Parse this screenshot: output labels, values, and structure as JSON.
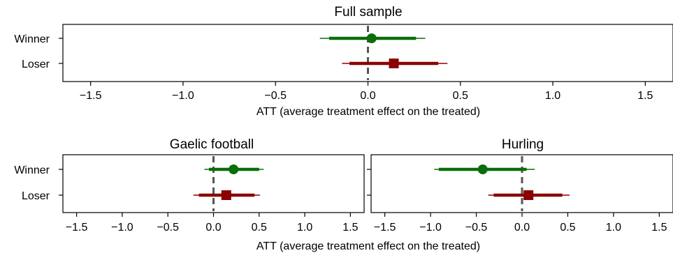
{
  "figure": {
    "shared_xlabel_top": "ATT (average treatment effect on the treated)",
    "shared_xlabel_bottom": "ATT (average treatment effect on the treated)"
  },
  "colors": {
    "winner": "#0a6e0a",
    "loser": "#8b0000",
    "zero_line": "#555555"
  },
  "chart_data": [
    {
      "type": "scatter",
      "subtype": "coefficient-plot",
      "title": "Full sample",
      "xlabel": "ATT (average treatment effect on the treated)",
      "xlim": [
        -1.65,
        1.65
      ],
      "xticks": [
        -1.5,
        -1.0,
        -0.5,
        0.0,
        0.5,
        1.0,
        1.5
      ],
      "xtick_labels": [
        "−1.5",
        "−1.0",
        "−0.5",
        "0.0",
        "0.5",
        "1.0",
        "1.5"
      ],
      "categories": [
        "Winner",
        "Loser"
      ],
      "reference_line": 0,
      "series": [
        {
          "name": "Winner",
          "marker": "circle",
          "estimate": 0.02,
          "ci_inner": [
            -0.21,
            0.26
          ],
          "ci_outer": [
            -0.26,
            0.31
          ]
        },
        {
          "name": "Loser",
          "marker": "square",
          "estimate": 0.14,
          "ci_inner": [
            -0.1,
            0.38
          ],
          "ci_outer": [
            -0.14,
            0.43
          ]
        }
      ]
    },
    {
      "type": "scatter",
      "subtype": "coefficient-plot",
      "title": "Gaelic football",
      "xlabel": "",
      "xlim": [
        -1.65,
        1.65
      ],
      "xticks": [
        -1.5,
        -1.0,
        -0.5,
        0.0,
        0.5,
        1.0,
        1.5
      ],
      "xtick_labels": [
        "−1.5",
        "−1.0",
        "−0.5",
        "0.0",
        "0.5",
        "1.0",
        "1.5"
      ],
      "categories": [
        "Winner",
        "Loser"
      ],
      "reference_line": 0,
      "series": [
        {
          "name": "Winner",
          "marker": "circle",
          "estimate": 0.22,
          "ci_inner": [
            -0.05,
            0.5
          ],
          "ci_outer": [
            -0.1,
            0.55
          ]
        },
        {
          "name": "Loser",
          "marker": "square",
          "estimate": 0.14,
          "ci_inner": [
            -0.16,
            0.45
          ],
          "ci_outer": [
            -0.22,
            0.51
          ]
        }
      ]
    },
    {
      "type": "scatter",
      "subtype": "coefficient-plot",
      "title": "Hurling",
      "xlabel": "",
      "xlim": [
        -1.65,
        1.65
      ],
      "xticks": [
        -1.5,
        -1.0,
        -0.5,
        0.0,
        0.5,
        1.0,
        1.5
      ],
      "xtick_labels": [
        "−1.5",
        "−1.0",
        "−0.5",
        "0.0",
        "0.5",
        "1.0",
        "1.5"
      ],
      "categories": [
        "Winner",
        "Loser"
      ],
      "reference_line": 0,
      "series": [
        {
          "name": "Winner",
          "marker": "circle",
          "estimate": -0.43,
          "ci_inner": [
            -0.91,
            0.05
          ],
          "ci_outer": [
            -0.96,
            0.14
          ]
        },
        {
          "name": "Loser",
          "marker": "square",
          "estimate": 0.07,
          "ci_inner": [
            -0.31,
            0.44
          ],
          "ci_outer": [
            -0.37,
            0.52
          ]
        }
      ]
    }
  ]
}
